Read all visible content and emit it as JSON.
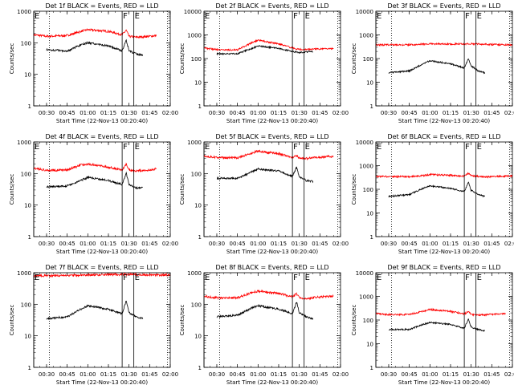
{
  "colors": {
    "events": "#000000",
    "lld": "#ff0000",
    "axes": "#000000",
    "background": "#ffffff"
  },
  "chart_data": [
    {
      "type": "line",
      "title": "Det 1f BLACK = Events, RED = LLD",
      "xlabel": "Start Time (22-Nov-13 00:20:40)",
      "ylabel": "Counts/sec",
      "yscale": "log",
      "ylim": [
        1,
        1000
      ],
      "yticks": [
        "1",
        "10",
        "100",
        "1000"
      ],
      "xlim": [
        "00:20:40",
        "02:00:00"
      ],
      "xticks": [
        "00:30",
        "00:45",
        "01:00",
        "01:15",
        "01:30",
        "01:45",
        "02:00"
      ],
      "markers": [
        {
          "label": "E",
          "time": "00:20:40",
          "style": "solid"
        },
        {
          "label": "",
          "time": "00:32:00",
          "style": "dotted"
        },
        {
          "label": "F",
          "time": "01:25:00",
          "style": "solid"
        },
        {
          "label": "E",
          "time": "01:33:30",
          "style": "solid"
        },
        {
          "label": "",
          "time": "01:58:00",
          "style": "dotted"
        }
      ],
      "series": [
        {
          "name": "RED = LLD",
          "color": "#ff0000",
          "shape": "lld1",
          "x": [
            "00:20:40",
            "00:30",
            "00:45",
            "00:55",
            "01:00",
            "01:15",
            "01:25",
            "01:28",
            "01:30",
            "01:35",
            "01:45",
            "01:50"
          ],
          "y": [
            180,
            160,
            170,
            230,
            260,
            230,
            180,
            250,
            160,
            150,
            160,
            170
          ]
        },
        {
          "name": "BLACK = Events",
          "color": "#000000",
          "shape": "evt1",
          "x": [
            "00:30",
            "00:45",
            "00:55",
            "01:00",
            "01:15",
            "01:25",
            "01:28",
            "01:30",
            "01:35",
            "01:40"
          ],
          "y": [
            60,
            55,
            85,
            100,
            80,
            55,
            120,
            55,
            45,
            40
          ]
        }
      ]
    },
    {
      "type": "line",
      "title": "Det 2f BLACK = Events, RED = LLD",
      "xlabel": "Start Time (22-Nov-13 00:20:40)",
      "ylabel": "Counts/sec",
      "yscale": "log",
      "ylim": [
        1,
        10000
      ],
      "yticks": [
        "1",
        "10",
        "100",
        "1000",
        "10000"
      ],
      "xlim": [
        "00:20:40",
        "02:00:00"
      ],
      "xticks": [
        "00:30",
        "00:45",
        "01:00",
        "01:15",
        "01:30",
        "01:45",
        "02:00"
      ],
      "markers": [
        {
          "label": "E",
          "time": "00:20:40",
          "style": "solid"
        },
        {
          "label": "",
          "time": "00:32:00",
          "style": "dotted"
        },
        {
          "label": "F",
          "time": "01:25:00",
          "style": "solid"
        },
        {
          "label": "E",
          "time": "01:33:30",
          "style": "solid"
        },
        {
          "label": "",
          "time": "01:58:00",
          "style": "dotted"
        }
      ],
      "series": [
        {
          "name": "RED = LLD",
          "color": "#ff0000",
          "shape": "lld2",
          "x": [
            "00:20:40",
            "00:30",
            "00:45",
            "00:55",
            "01:00",
            "01:15",
            "01:25",
            "01:30",
            "01:40",
            "01:55"
          ],
          "y": [
            280,
            240,
            230,
            450,
            600,
            420,
            280,
            240,
            250,
            260
          ]
        },
        {
          "name": "BLACK = Events",
          "color": "#000000",
          "shape": "evt2",
          "x": [
            "00:30",
            "00:45",
            "00:55",
            "01:00",
            "01:15",
            "01:25",
            "01:30",
            "01:40"
          ],
          "y": [
            160,
            160,
            260,
            340,
            270,
            200,
            180,
            200
          ]
        }
      ]
    },
    {
      "type": "line",
      "title": "Det 3f BLACK = Events, RED = LLD",
      "xlabel": "Start Time (22-Nov-13 00:20:40)",
      "ylabel": "Counts/sec",
      "yscale": "log",
      "ylim": [
        1,
        10000
      ],
      "yticks": [
        "1",
        "10",
        "100",
        "1000",
        "10000"
      ],
      "xlim": [
        "00:20:40",
        "02:00:00"
      ],
      "xticks": [
        "00:30",
        "00:45",
        "01:00",
        "01:15",
        "01:30",
        "01:45",
        "02:00"
      ],
      "markers": [
        {
          "label": "E",
          "time": "00:20:40",
          "style": "solid"
        },
        {
          "label": "",
          "time": "00:32:00",
          "style": "dotted"
        },
        {
          "label": "F",
          "time": "01:25:00",
          "style": "solid"
        },
        {
          "label": "E",
          "time": "01:33:30",
          "style": "solid"
        },
        {
          "label": "",
          "time": "01:58:00",
          "style": "dotted"
        }
      ],
      "series": [
        {
          "name": "RED = LLD",
          "color": "#ff0000",
          "shape": "lld3",
          "x": [
            "00:20:40",
            "00:45",
            "01:00",
            "01:15",
            "01:30",
            "01:45",
            "02:00"
          ],
          "y": [
            380,
            380,
            420,
            410,
            420,
            390,
            380
          ]
        },
        {
          "name": "BLACK = Events",
          "color": "#000000",
          "shape": "evt3",
          "x": [
            "00:30",
            "00:45",
            "00:55",
            "01:00",
            "01:15",
            "01:25",
            "01:28",
            "01:30",
            "01:35",
            "01:40"
          ],
          "y": [
            25,
            30,
            60,
            80,
            60,
            40,
            100,
            50,
            30,
            25
          ]
        }
      ]
    },
    {
      "type": "line",
      "title": "Det 4f BLACK = Events, RED = LLD",
      "xlabel": "Start Time (22-Nov-13 00:20:40)",
      "ylabel": "Counts/sec",
      "yscale": "log",
      "ylim": [
        1,
        1000
      ],
      "yticks": [
        "1",
        "10",
        "100",
        "1000"
      ],
      "xlim": [
        "00:20:40",
        "02:00:00"
      ],
      "xticks": [
        "00:30",
        "00:45",
        "01:00",
        "01:15",
        "01:30",
        "01:45",
        "02:00"
      ],
      "markers": [
        {
          "label": "E",
          "time": "00:20:40",
          "style": "solid"
        },
        {
          "label": "",
          "time": "00:32:00",
          "style": "dotted"
        },
        {
          "label": "F",
          "time": "01:25:00",
          "style": "solid"
        },
        {
          "label": "E",
          "time": "01:33:30",
          "style": "solid"
        },
        {
          "label": "",
          "time": "01:58:00",
          "style": "dotted"
        }
      ],
      "series": [
        {
          "name": "RED = LLD",
          "color": "#ff0000",
          "shape": "lld1",
          "x": [
            "00:20:40",
            "00:30",
            "00:45",
            "00:55",
            "01:00",
            "01:15",
            "01:25",
            "01:28",
            "01:30",
            "01:35",
            "01:45",
            "01:50"
          ],
          "y": [
            150,
            125,
            130,
            185,
            200,
            160,
            130,
            200,
            130,
            120,
            130,
            140
          ]
        },
        {
          "name": "BLACK = Events",
          "color": "#000000",
          "shape": "evt1",
          "x": [
            "00:30",
            "00:45",
            "00:55",
            "01:00",
            "01:15",
            "01:25",
            "01:28",
            "01:30",
            "01:35",
            "01:40"
          ],
          "y": [
            38,
            40,
            60,
            75,
            60,
            45,
            100,
            45,
            35,
            35
          ]
        }
      ]
    },
    {
      "type": "line",
      "title": "Det 5f BLACK = Events, RED = LLD",
      "xlabel": "Start Time (22-Nov-13 00:20:40)",
      "ylabel": "Counts/sec",
      "yscale": "log",
      "ylim": [
        1,
        1000
      ],
      "yticks": [
        "1",
        "10",
        "100",
        "1000"
      ],
      "xlim": [
        "00:20:40",
        "02:00:00"
      ],
      "xticks": [
        "00:30",
        "00:45",
        "01:00",
        "01:15",
        "01:30",
        "01:45",
        "02:00"
      ],
      "markers": [
        {
          "label": "E",
          "time": "00:20:40",
          "style": "solid"
        },
        {
          "label": "",
          "time": "00:32:00",
          "style": "dotted"
        },
        {
          "label": "F",
          "time": "01:25:00",
          "style": "solid"
        },
        {
          "label": "E",
          "time": "01:33:30",
          "style": "solid"
        },
        {
          "label": "",
          "time": "01:58:00",
          "style": "dotted"
        }
      ],
      "series": [
        {
          "name": "RED = LLD",
          "color": "#ff0000",
          "shape": "lld1",
          "x": [
            "00:20:40",
            "00:30",
            "00:45",
            "00:55",
            "01:00",
            "01:15",
            "01:25",
            "01:28",
            "01:30",
            "01:35",
            "01:45",
            "01:55"
          ],
          "y": [
            360,
            320,
            310,
            440,
            520,
            420,
            330,
            380,
            300,
            300,
            330,
            350
          ]
        },
        {
          "name": "BLACK = Events",
          "color": "#000000",
          "shape": "evt1",
          "x": [
            "00:30",
            "00:45",
            "00:55",
            "01:00",
            "01:15",
            "01:25",
            "01:28",
            "01:30",
            "01:35",
            "01:40"
          ],
          "y": [
            70,
            70,
            110,
            140,
            120,
            80,
            160,
            80,
            60,
            55
          ]
        }
      ]
    },
    {
      "type": "line",
      "title": "Det 6f BLACK = Events, RED = LLD",
      "xlabel": "Start Time (22-Nov-13 00:20:40)",
      "ylabel": "Counts/sec",
      "yscale": "log",
      "ylim": [
        1,
        10000
      ],
      "yticks": [
        "1",
        "10",
        "100",
        "1000",
        "10000"
      ],
      "xlim": [
        "00:20:40",
        "02:00:00"
      ],
      "xticks": [
        "00:30",
        "00:45",
        "01:00",
        "01:15",
        "01:30",
        "01:45",
        "02:00"
      ],
      "markers": [
        {
          "label": "E",
          "time": "00:20:40",
          "style": "solid"
        },
        {
          "label": "",
          "time": "00:32:00",
          "style": "dotted"
        },
        {
          "label": "F",
          "time": "01:25:00",
          "style": "solid"
        },
        {
          "label": "E",
          "time": "01:33:30",
          "style": "solid"
        },
        {
          "label": "",
          "time": "01:58:00",
          "style": "dotted"
        }
      ],
      "series": [
        {
          "name": "RED = LLD",
          "color": "#ff0000",
          "shape": "lld3",
          "x": [
            "00:20:40",
            "00:45",
            "00:55",
            "01:00",
            "01:15",
            "01:25",
            "01:28",
            "01:30",
            "01:40",
            "02:00"
          ],
          "y": [
            350,
            340,
            380,
            420,
            390,
            360,
            480,
            380,
            330,
            370
          ]
        },
        {
          "name": "BLACK = Events",
          "color": "#000000",
          "shape": "evt1",
          "x": [
            "00:30",
            "00:45",
            "00:55",
            "01:00",
            "01:15",
            "01:25",
            "01:28",
            "01:30",
            "01:35",
            "01:40"
          ],
          "y": [
            50,
            60,
            110,
            140,
            110,
            80,
            200,
            90,
            60,
            50
          ]
        }
      ]
    },
    {
      "type": "line",
      "title": "Det 7f BLACK = Events, RED = LLD",
      "xlabel": "Start Time (22-Nov-13 00:20:40)",
      "ylabel": "Counts/sec",
      "yscale": "log",
      "ylim": [
        1,
        1000
      ],
      "yticks": [
        "1",
        "10",
        "100",
        "1000"
      ],
      "xlim": [
        "00:20:40",
        "02:00:00"
      ],
      "xticks": [
        "00:30",
        "00:45",
        "01:00",
        "01:15",
        "01:30",
        "01:45",
        "02:00"
      ],
      "markers": [
        {
          "label": "E",
          "time": "00:20:40",
          "style": "solid"
        },
        {
          "label": "",
          "time": "00:32:00",
          "style": "dotted"
        },
        {
          "label": "F",
          "time": "01:25:00",
          "style": "solid"
        },
        {
          "label": "E",
          "time": "01:33:30",
          "style": "solid"
        },
        {
          "label": "",
          "time": "01:58:00",
          "style": "dotted"
        }
      ],
      "series": [
        {
          "name": "RED = LLD",
          "color": "#ff0000",
          "shape": "lld3",
          "x": [
            "00:20:40",
            "00:45",
            "01:00",
            "01:15",
            "01:30",
            "01:45",
            "02:00"
          ],
          "y": [
            800,
            820,
            850,
            870,
            880,
            860,
            850
          ]
        },
        {
          "name": "BLACK = Events",
          "color": "#000000",
          "shape": "evt1",
          "x": [
            "00:30",
            "00:45",
            "00:55",
            "01:00",
            "01:15",
            "01:25",
            "01:28",
            "01:30",
            "01:35",
            "01:40"
          ],
          "y": [
            35,
            40,
            70,
            90,
            70,
            50,
            130,
            55,
            40,
            35
          ]
        }
      ]
    },
    {
      "type": "line",
      "title": "Det 8f BLACK = Events, RED = LLD",
      "xlabel": "Start Time (22-Nov-13 00:20:40)",
      "ylabel": "Counts/sec",
      "yscale": "log",
      "ylim": [
        1,
        1000
      ],
      "yticks": [
        "1",
        "10",
        "100",
        "1000"
      ],
      "xlim": [
        "00:20:40",
        "02:00:00"
      ],
      "xticks": [
        "00:30",
        "00:45",
        "01:00",
        "01:15",
        "01:30",
        "01:45",
        "02:00"
      ],
      "markers": [
        {
          "label": "E",
          "time": "00:20:40",
          "style": "solid"
        },
        {
          "label": "",
          "time": "00:32:00",
          "style": "dotted"
        },
        {
          "label": "F",
          "time": "01:25:00",
          "style": "solid"
        },
        {
          "label": "E",
          "time": "01:33:30",
          "style": "solid"
        },
        {
          "label": "",
          "time": "01:58:00",
          "style": "dotted"
        }
      ],
      "series": [
        {
          "name": "RED = LLD",
          "color": "#ff0000",
          "shape": "lld1",
          "x": [
            "00:20:40",
            "00:30",
            "00:45",
            "00:55",
            "01:00",
            "01:15",
            "01:25",
            "01:28",
            "01:30",
            "01:35",
            "01:45",
            "01:55"
          ],
          "y": [
            180,
            160,
            160,
            230,
            260,
            220,
            170,
            220,
            160,
            150,
            170,
            180
          ]
        },
        {
          "name": "BLACK = Events",
          "color": "#000000",
          "shape": "evt1",
          "x": [
            "00:30",
            "00:45",
            "00:55",
            "01:00",
            "01:15",
            "01:25",
            "01:28",
            "01:30",
            "01:35",
            "01:40"
          ],
          "y": [
            40,
            45,
            75,
            90,
            70,
            50,
            120,
            55,
            40,
            35
          ]
        }
      ]
    },
    {
      "type": "line",
      "title": "Det 9f BLACK = Events, RED = LLD",
      "xlabel": "Start Time (22-Nov-13 00:20:40)",
      "ylabel": "Counts/sec",
      "yscale": "log",
      "ylim": [
        1,
        10000
      ],
      "yticks": [
        "1",
        "10",
        "100",
        "1000",
        "10000"
      ],
      "xlim": [
        "00:20:40",
        "02:00:00"
      ],
      "xticks": [
        "00:30",
        "00:45",
        "01:00",
        "01:15",
        "01:30",
        "01:45",
        "02:00"
      ],
      "markers": [
        {
          "label": "E",
          "time": "00:20:40",
          "style": "solid"
        },
        {
          "label": "",
          "time": "00:32:00",
          "style": "dotted"
        },
        {
          "label": "F",
          "time": "01:25:00",
          "style": "solid"
        },
        {
          "label": "E",
          "time": "01:33:30",
          "style": "solid"
        },
        {
          "label": "",
          "time": "01:58:00",
          "style": "dotted"
        }
      ],
      "series": [
        {
          "name": "RED = LLD",
          "color": "#ff0000",
          "shape": "lld1",
          "x": [
            "00:20:40",
            "00:30",
            "00:45",
            "00:55",
            "01:00",
            "01:15",
            "01:25",
            "01:28",
            "01:30",
            "01:35",
            "01:45",
            "01:55"
          ],
          "y": [
            190,
            170,
            170,
            240,
            280,
            230,
            180,
            230,
            170,
            160,
            175,
            185
          ]
        },
        {
          "name": "BLACK = Events",
          "color": "#000000",
          "shape": "evt1",
          "x": [
            "00:30",
            "00:45",
            "00:55",
            "01:00",
            "01:15",
            "01:25",
            "01:28",
            "01:30",
            "01:35",
            "01:40"
          ],
          "y": [
            40,
            40,
            65,
            80,
            65,
            45,
            110,
            50,
            40,
            35
          ]
        }
      ]
    }
  ]
}
